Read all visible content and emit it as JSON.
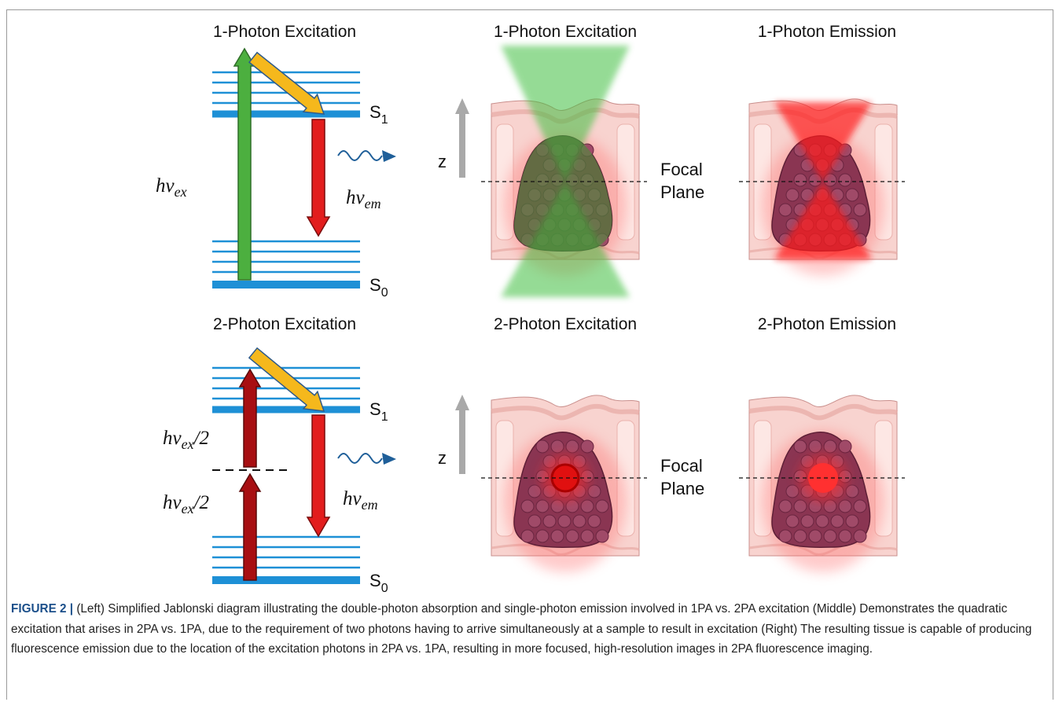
{
  "jablonski": [
    {
      "title": "1-Photon Excitation",
      "upper_state": {
        "letter": "S",
        "sub": "1"
      },
      "lower_state": {
        "letter": "S",
        "sub": "0"
      },
      "excitation_labels": [
        {
          "base": "hv",
          "sub": "ex"
        }
      ],
      "emission_label": {
        "base": "hv",
        "sub": "em"
      }
    },
    {
      "title": "2-Photon Excitation",
      "upper_state": {
        "letter": "S",
        "sub": "1"
      },
      "lower_state": {
        "letter": "S",
        "sub": "0"
      },
      "excitation_labels": [
        {
          "base": "hv",
          "sub": "ex",
          "suffix": "/2"
        },
        {
          "base": "hv",
          "sub": "ex",
          "suffix": "/2"
        }
      ],
      "emission_label": {
        "base": "hv",
        "sub": "em"
      }
    }
  ],
  "tissue": [
    {
      "title": "1-Photon Excitation",
      "axis_label": "z",
      "focal_label": [
        "Focal",
        "Plane"
      ]
    },
    {
      "title": "1-Photon Emission"
    },
    {
      "title": "2-Photon Excitation",
      "axis_label": "z",
      "focal_label": [
        "Focal",
        "Plane"
      ]
    },
    {
      "title": "2-Photon Emission"
    }
  ],
  "caption": {
    "label": "FIGURE 2 |",
    "text": "(Left) Simplified Jablonski diagram illustrating the double-photon absorption and single-photon emission involved in 1PA vs. 2PA excitation (Middle) Demonstrates the quadratic excitation that arises in 2PA vs. 1PA, due to the requirement of two photons having to arrive simultaneously at a sample to result in excitation (Right) The resulting tissue is capable of producing fluorescence emission due to the location of the excitation photons in 2PA vs. 1PA, resulting in more focused, high-resolution images in 2PA fluorescence imaging."
  }
}
